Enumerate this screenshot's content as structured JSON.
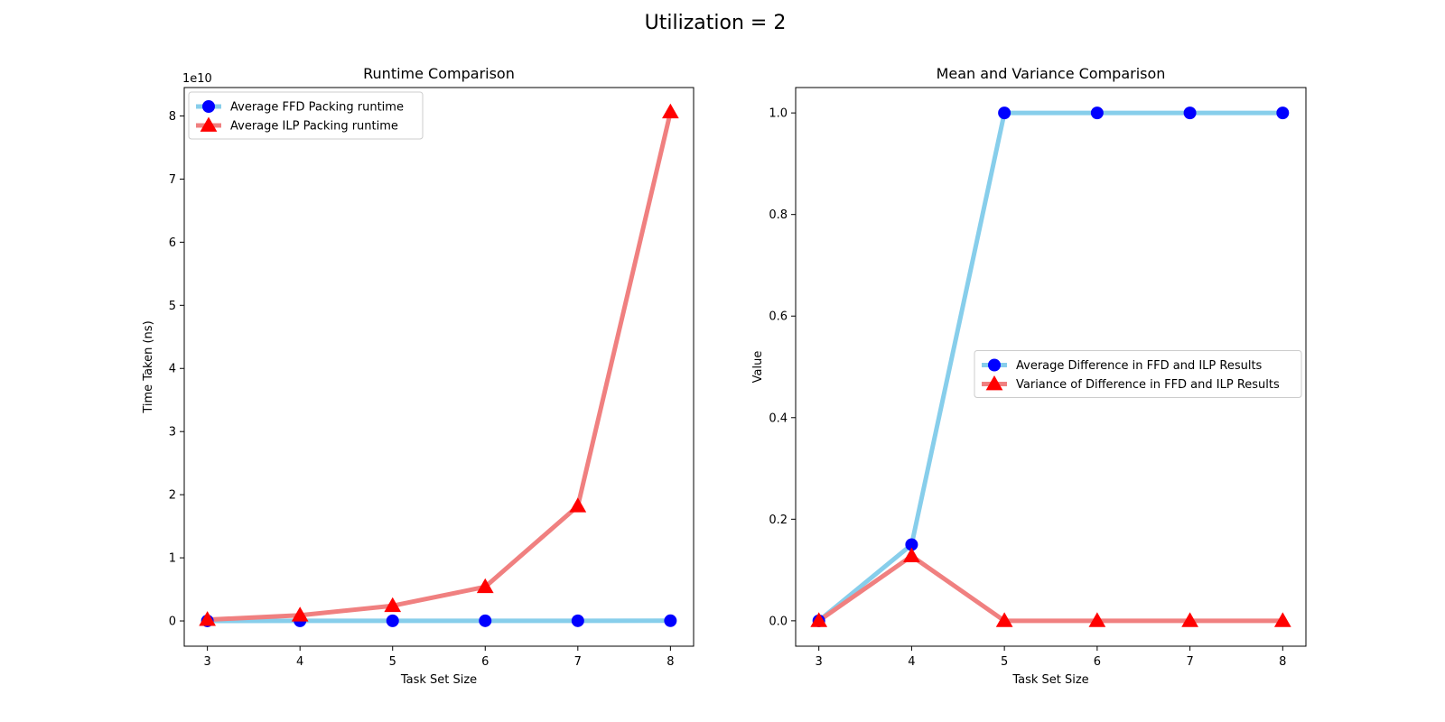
{
  "figure": {
    "suptitle": "Utilization = 2"
  },
  "chart_data": [
    {
      "type": "line",
      "title": "Runtime Comparison",
      "xlabel": "Task Set Size",
      "ylabel": "Time Taken (ns)",
      "y_offset_label": "1e10",
      "x": [
        3,
        4,
        5,
        6,
        7,
        8
      ],
      "xlim": [
        2.75,
        8.25
      ],
      "ylim": [
        -4000000000.0,
        84500000000.0
      ],
      "xticks": [
        3,
        4,
        5,
        6,
        7,
        8
      ],
      "yticks": [
        0,
        10000000000.0,
        20000000000.0,
        30000000000.0,
        40000000000.0,
        50000000000.0,
        60000000000.0,
        70000000000.0,
        80000000000.0
      ],
      "ytick_labels": [
        "0",
        "1",
        "2",
        "3",
        "4",
        "5",
        "6",
        "7",
        "8"
      ],
      "grid": false,
      "legend_position": "upper-left",
      "series": [
        {
          "name": "Average FFD Packing runtime",
          "values": [
            10000000,
            15000000,
            20000000,
            25000000,
            30000000,
            35000000
          ],
          "line_color": "#87ceeb",
          "marker": "circle",
          "marker_color": "#0000ff"
        },
        {
          "name": "Average ILP Packing runtime",
          "values": [
            200000000,
            900000000,
            2400000000,
            5400000000,
            18200000000,
            80600000000
          ],
          "line_color": "#f08080",
          "marker": "triangle",
          "marker_color": "#ff0000"
        }
      ]
    },
    {
      "type": "line",
      "title": "Mean and Variance Comparison",
      "xlabel": "Task Set Size",
      "ylabel": "Value",
      "x": [
        3,
        4,
        5,
        6,
        7,
        8
      ],
      "xlim": [
        2.75,
        8.25
      ],
      "ylim": [
        -0.05,
        1.05
      ],
      "xticks": [
        3,
        4,
        5,
        6,
        7,
        8
      ],
      "yticks": [
        0.0,
        0.2,
        0.4,
        0.6,
        0.8,
        1.0
      ],
      "ytick_labels": [
        "0.0",
        "0.2",
        "0.4",
        "0.6",
        "0.8",
        "1.0"
      ],
      "grid": false,
      "legend_position": "center-right",
      "series": [
        {
          "name": "Average Difference in FFD and ILP Results",
          "values": [
            0.0,
            0.15,
            1.0,
            1.0,
            1.0,
            1.0
          ],
          "line_color": "#87ceeb",
          "marker": "circle",
          "marker_color": "#0000ff"
        },
        {
          "name": "Variance of Difference in FFD and ILP Results",
          "values": [
            0.0,
            0.1275,
            0.0,
            0.0,
            0.0,
            0.0
          ],
          "line_color": "#f08080",
          "marker": "triangle",
          "marker_color": "#ff0000"
        }
      ]
    }
  ]
}
